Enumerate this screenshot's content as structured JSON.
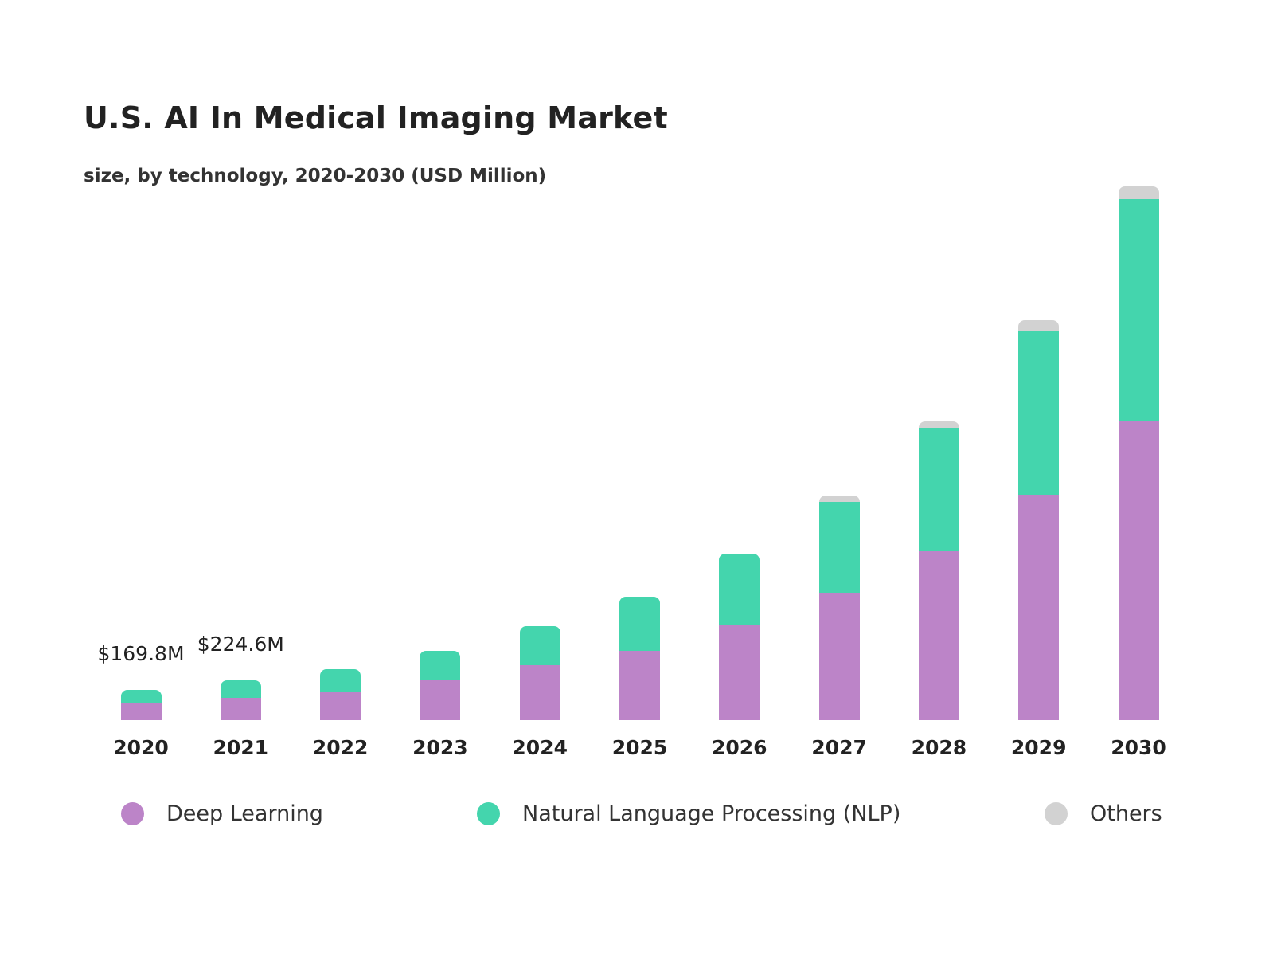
{
  "chart_data": {
    "type": "bar",
    "stacked": true,
    "title": "U.S. AI In Medical Imaging Market",
    "subtitle": "size, by technology, 2020-2030 (USD Million)",
    "categories": [
      "2020",
      "2021",
      "2022",
      "2023",
      "2024",
      "2025",
      "2026",
      "2027",
      "2028",
      "2029",
      "2030"
    ],
    "series": [
      {
        "name": "Deep Learning",
        "color": "#bc84c8",
        "values": [
          94,
          127,
          161,
          224,
          309,
          389,
          532,
          715,
          948,
          1265,
          1681
        ]
      },
      {
        "name": "Natural Language Processing (NLP)",
        "color": "#44d5ad",
        "values": [
          76,
          97,
          125,
          165,
          219,
          304,
          402,
          510,
          693,
          921,
          1243
        ]
      },
      {
        "name": "Others",
        "color": "#d2d2d2",
        "values": [
          0,
          0,
          0,
          0,
          0,
          0,
          0,
          36,
          36,
          58,
          72
        ]
      }
    ],
    "value_labels": [
      {
        "category": "2020",
        "text": "$169.8M"
      },
      {
        "category": "2021",
        "text": "$224.6M"
      }
    ],
    "ylim": [
      0,
      3000
    ],
    "grid": false,
    "y_axis_shown": false,
    "legend": "bottom"
  }
}
